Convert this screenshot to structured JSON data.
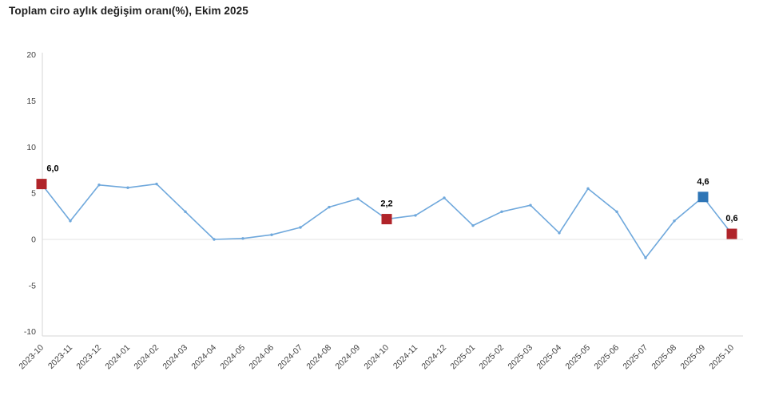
{
  "title": "Toplam ciro aylık değişim oranı(%), Ekim 2025",
  "colors": {
    "line": "#6fa8dc",
    "marker_red": "#b0242a",
    "marker_blue": "#2e75b6",
    "axis_line": "#d6d6d6",
    "zero_line": "#e3e3e3",
    "axis_text": "#404040",
    "title_text": "#1f1f1f",
    "data_label_text": "#000000"
  },
  "chart_data": {
    "type": "line",
    "title": "Toplam ciro aylık değişim oranı(%), Ekim 2025",
    "xlabel": "",
    "ylabel": "",
    "ylim": [
      -10,
      20
    ],
    "yticks": [
      20,
      15,
      10,
      5,
      0,
      -5,
      -10
    ],
    "grid": "zero-line-only",
    "legend": "none",
    "x": [
      "2023-10",
      "2023-11",
      "2023-12",
      "2024-01",
      "2024-02",
      "2024-03",
      "2024-04",
      "2024-05",
      "2024-06",
      "2024-07",
      "2024-08",
      "2024-09",
      "2024-10",
      "2024-11",
      "2024-12",
      "2025-01",
      "2025-02",
      "2025-03",
      "2025-04",
      "2025-05",
      "2025-06",
      "2025-07",
      "2025-08",
      "2025-09",
      "2025-10"
    ],
    "values": [
      6.0,
      2.0,
      5.9,
      5.6,
      6.0,
      3.0,
      0.0,
      0.1,
      0.5,
      1.3,
      3.5,
      4.4,
      2.2,
      2.6,
      4.5,
      1.5,
      3.0,
      3.7,
      0.7,
      5.5,
      3.0,
      -2.0,
      2.0,
      4.6,
      0.6
    ],
    "labeled_points": [
      {
        "x": "2023-10",
        "value": 6.0,
        "label": "6,0",
        "marker": "red"
      },
      {
        "x": "2024-10",
        "value": 2.2,
        "label": "2,2",
        "marker": "red"
      },
      {
        "x": "2025-09",
        "value": 4.6,
        "label": "4,6",
        "marker": "blue"
      },
      {
        "x": "2025-10",
        "value": 0.6,
        "label": "0,6",
        "marker": "red"
      }
    ]
  }
}
